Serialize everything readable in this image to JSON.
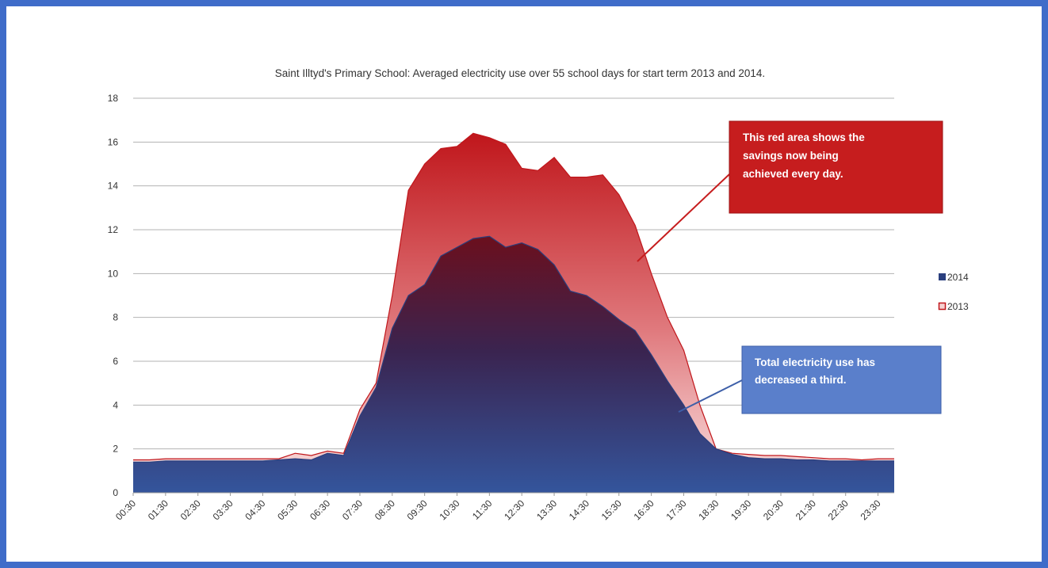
{
  "chart_data": {
    "type": "area",
    "title": "Saint Illtyd's Primary School: Averaged electricity use over 55 school days for start term 2013  and 2014.",
    "xlabel": "",
    "ylabel": "",
    "ylim": [
      0,
      18
    ],
    "yticks": [
      0,
      2,
      4,
      6,
      8,
      10,
      12,
      14,
      16,
      18
    ],
    "grid": true,
    "legend_position": "right",
    "x": [
      "00:30",
      "01:00",
      "01:30",
      "02:00",
      "02:30",
      "03:00",
      "03:30",
      "04:00",
      "04:30",
      "05:00",
      "05:30",
      "06:00",
      "06:30",
      "07:00",
      "07:30",
      "08:00",
      "08:30",
      "09:00",
      "09:30",
      "10:00",
      "10:30",
      "11:00",
      "11:30",
      "12:00",
      "12:30",
      "13:00",
      "13:30",
      "14:00",
      "14:30",
      "15:00",
      "15:30",
      "16:00",
      "16:30",
      "17:00",
      "17:30",
      "18:00",
      "18:30",
      "19:00",
      "19:30",
      "20:00",
      "20:30",
      "21:00",
      "21:30",
      "22:00",
      "22:30",
      "23:00",
      "23:30",
      "00:00"
    ],
    "xtick_labels": [
      "00:30",
      "01:30",
      "02:30",
      "03:30",
      "04:30",
      "05:30",
      "06:30",
      "07:30",
      "08:30",
      "09:30",
      "10:30",
      "11:30",
      "12:30",
      "13:30",
      "14:30",
      "15:30",
      "16:30",
      "17:30",
      "18:30",
      "19:30",
      "20:30",
      "21:30",
      "22:30",
      "23:30"
    ],
    "series": [
      {
        "name": "2013",
        "color": "#c0161b",
        "values": [
          1.5,
          1.5,
          1.55,
          1.55,
          1.55,
          1.55,
          1.55,
          1.55,
          1.55,
          1.55,
          1.8,
          1.7,
          1.9,
          1.8,
          3.8,
          5.0,
          9.0,
          13.8,
          15.0,
          15.7,
          15.8,
          16.4,
          16.2,
          15.9,
          14.8,
          14.7,
          15.3,
          14.4,
          14.4,
          14.5,
          13.6,
          12.2,
          10.0,
          8.0,
          6.5,
          4.0,
          2.0,
          1.8,
          1.75,
          1.7,
          1.7,
          1.65,
          1.6,
          1.55,
          1.55,
          1.5,
          1.55,
          1.55
        ]
      },
      {
        "name": "2014",
        "color": "#2a3f7e",
        "values": [
          1.4,
          1.4,
          1.45,
          1.45,
          1.45,
          1.45,
          1.45,
          1.45,
          1.45,
          1.5,
          1.55,
          1.5,
          1.8,
          1.7,
          3.5,
          4.8,
          7.5,
          9.0,
          9.5,
          10.8,
          11.2,
          11.6,
          11.7,
          11.2,
          11.4,
          11.1,
          10.4,
          9.2,
          9.0,
          8.5,
          7.9,
          7.4,
          6.3,
          5.1,
          4.0,
          2.7,
          2.0,
          1.75,
          1.6,
          1.55,
          1.55,
          1.5,
          1.5,
          1.45,
          1.45,
          1.45,
          1.45,
          1.45
        ]
      }
    ],
    "annotations": [
      {
        "text": "This red area shows the savings now being achieved every day.",
        "fill": "#c61d1e"
      },
      {
        "text": "Total electricity use has decreased a third.",
        "fill": "#5a7fcb"
      }
    ]
  }
}
